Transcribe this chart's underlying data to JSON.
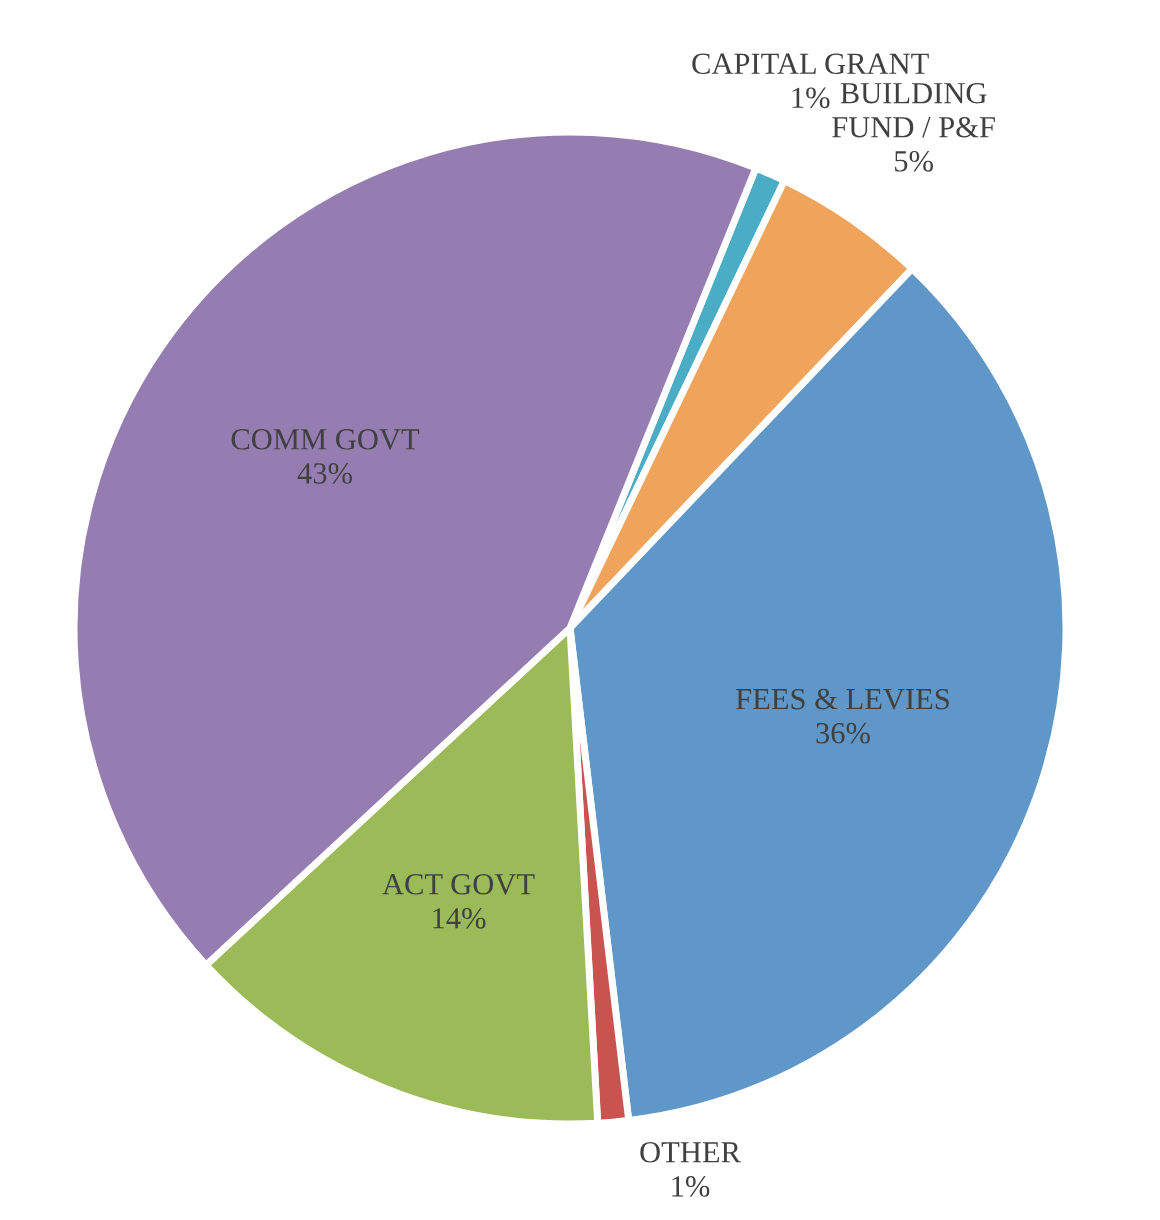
{
  "chart_data": {
    "type": "pie",
    "categories": [
      "CAPITAL GRANT",
      "BUILDING\nFUND / P&F",
      "FEES & LEVIES",
      "OTHER",
      "ACT GOVT",
      "COMM GOVT"
    ],
    "values": [
      1,
      5,
      36,
      1,
      14,
      43
    ],
    "value_labels": [
      "1%",
      "5%",
      "36%",
      "1%",
      "14%",
      "43%"
    ],
    "colors": [
      "#4bacc6",
      "#f0a35a",
      "#5f97c8",
      "#c9544f",
      "#9bbb59",
      "#957db1"
    ]
  }
}
